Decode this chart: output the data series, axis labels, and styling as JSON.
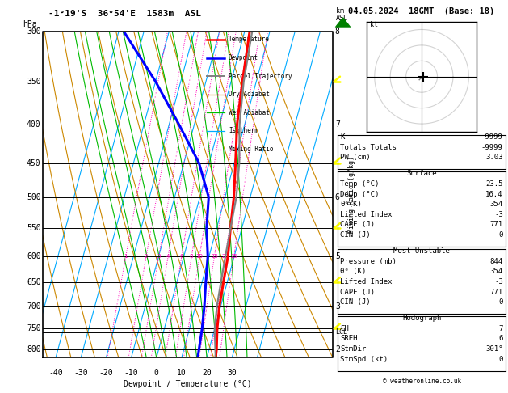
{
  "title_left": "-1°19'S  36°54'E  1583m  ASL",
  "title_right": "04.05.2024  18GMT  (Base: 18)",
  "xlabel": "Dewpoint / Temperature (°C)",
  "p_min": 300,
  "p_max": 820,
  "temp_min": -45,
  "temp_max": 35,
  "lcl_pressure": 758,
  "pressure_levels": [
    300,
    350,
    400,
    450,
    500,
    550,
    600,
    650,
    700,
    750,
    800
  ],
  "temp_profile_p": [
    820,
    800,
    750,
    700,
    650,
    600,
    550,
    500,
    450,
    400,
    350,
    300
  ],
  "temp_profile_t": [
    23.5,
    23.0,
    21.0,
    19.5,
    18.5,
    17.5,
    15.5,
    13.5,
    10.5,
    7.0,
    4.5,
    2.0
  ],
  "dewp_profile_p": [
    820,
    800,
    750,
    700,
    650,
    600,
    550,
    500,
    450,
    400,
    350,
    300
  ],
  "dewp_profile_t": [
    16.4,
    16.0,
    15.0,
    13.5,
    11.5,
    9.5,
    6.0,
    3.5,
    -4.0,
    -16.0,
    -30.0,
    -48.0
  ],
  "parcel_profile_p": [
    820,
    800,
    750,
    700,
    650,
    600,
    550,
    500,
    450,
    400,
    350,
    300
  ],
  "parcel_profile_t": [
    23.5,
    22.5,
    20.0,
    18.5,
    17.5,
    16.5,
    15.5,
    14.5,
    12.0,
    8.0,
    5.0,
    3.0
  ],
  "mixing_ratios": [
    1,
    2,
    3,
    4,
    6,
    8,
    10,
    15,
    20,
    25
  ],
  "km_labels": {
    "300": "8",
    "400": "7",
    "500": "6",
    "600": "5",
    "700": "3",
    "800": "2"
  },
  "temp_color": "#ff0000",
  "dewp_color": "#0000ff",
  "parcel_color": "#808080",
  "dry_adiabat_color": "#cc8800",
  "wet_adiabat_color": "#00bb00",
  "isotherm_color": "#00aaff",
  "mixing_ratio_color": "#ff00bb",
  "K": "-9999",
  "TT": "-9999",
  "PW": "3.03",
  "sfc_temp": "23.5",
  "sfc_dewp": "16.4",
  "theta_e_sfc": "354",
  "lifted_index_sfc": "-3",
  "cape_sfc": "771",
  "cin_sfc": "0",
  "mu_pressure": "844",
  "mu_theta_e": "354",
  "mu_li": "-3",
  "mu_cape": "771",
  "mu_cin": "0",
  "hodo_EH": "7",
  "hodo_SREH": "6",
  "hodo_StmDir": "301°",
  "hodo_StmSpd": "0",
  "copyright": "© weatheronline.co.uk",
  "yellow_wind_ps": [
    350,
    450,
    550,
    650,
    750
  ],
  "skew": 35
}
